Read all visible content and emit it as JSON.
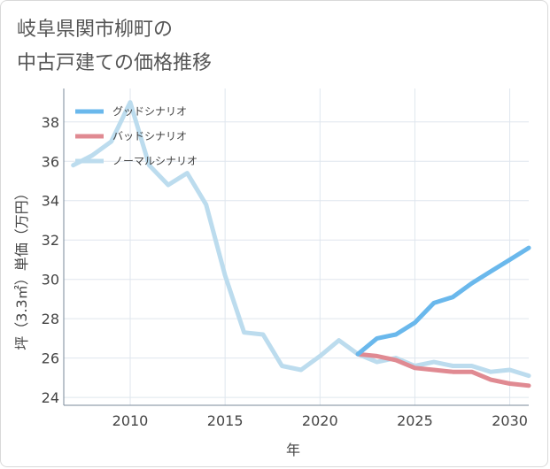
{
  "chart_title_lines": [
    "岐阜県関市柳町の",
    "中古戸建ての価格推移"
  ],
  "chart_data": {
    "type": "line",
    "title": "岐阜県関市柳町の中古戸建ての価格推移",
    "xlabel": "年",
    "ylabel": "坪（3.3㎡）単価（万円）",
    "xlim": [
      2006.5,
      2031
    ],
    "ylim": [
      23.6,
      39.7
    ],
    "x_ticks": [
      2010,
      2015,
      2020,
      2025,
      2030
    ],
    "y_ticks": [
      24,
      26,
      28,
      30,
      32,
      34,
      36,
      38
    ],
    "grid": true,
    "legend_position": "top-left",
    "series": [
      {
        "name": "グッドシナリオ",
        "color": "#6ab8ec",
        "x": [
          2022,
          2023,
          2024,
          2025,
          2026,
          2027,
          2028,
          2029,
          2030,
          2031
        ],
        "y": [
          26.2,
          27.0,
          27.2,
          27.8,
          28.8,
          29.1,
          29.8,
          30.4,
          31.0,
          31.6
        ]
      },
      {
        "name": "バッドシナリオ",
        "color": "#e08a92",
        "x": [
          2022,
          2023,
          2024,
          2025,
          2026,
          2027,
          2028,
          2029,
          2030,
          2031
        ],
        "y": [
          26.2,
          26.1,
          25.9,
          25.5,
          25.4,
          25.3,
          25.3,
          24.9,
          24.7,
          24.6
        ]
      },
      {
        "name": "ノーマルシナリオ",
        "color": "#bcdcee",
        "x": [
          2007,
          2008,
          2009,
          2010,
          2011,
          2012,
          2013,
          2014,
          2015,
          2016,
          2017,
          2018,
          2019,
          2020,
          2021,
          2022,
          2023,
          2024,
          2025,
          2026,
          2027,
          2028,
          2029,
          2030,
          2031
        ],
        "y": [
          35.8,
          36.3,
          37.0,
          39.0,
          35.8,
          34.8,
          35.4,
          33.8,
          30.2,
          27.3,
          27.2,
          25.6,
          25.4,
          26.1,
          26.9,
          26.2,
          25.8,
          26.0,
          25.6,
          25.8,
          25.6,
          25.6,
          25.3,
          25.4,
          25.1
        ]
      }
    ]
  }
}
